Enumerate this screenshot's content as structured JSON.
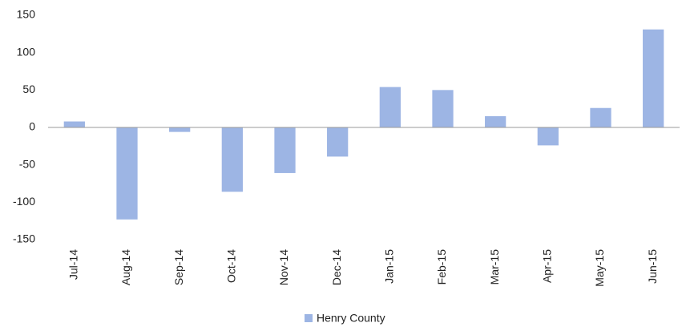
{
  "chart_data": {
    "type": "bar",
    "categories": [
      "Jul-14",
      "Aug-14",
      "Sep-14",
      "Oct-14",
      "Nov-14",
      "Dec-14",
      "Jan-15",
      "Feb-15",
      "Mar-15",
      "Apr-15",
      "May-15",
      "Jun-15"
    ],
    "series": [
      {
        "name": "Henry County",
        "color": "#9db5e4",
        "values": [
          8,
          -123,
          -6,
          -86,
          -61,
          -39,
          54,
          50,
          15,
          -24,
          26,
          131
        ]
      }
    ],
    "ylim": [
      -150,
      150
    ],
    "yticks": [
      -150,
      -100,
      -50,
      0,
      50,
      100,
      150
    ],
    "grid": false,
    "legend": "bottom"
  }
}
